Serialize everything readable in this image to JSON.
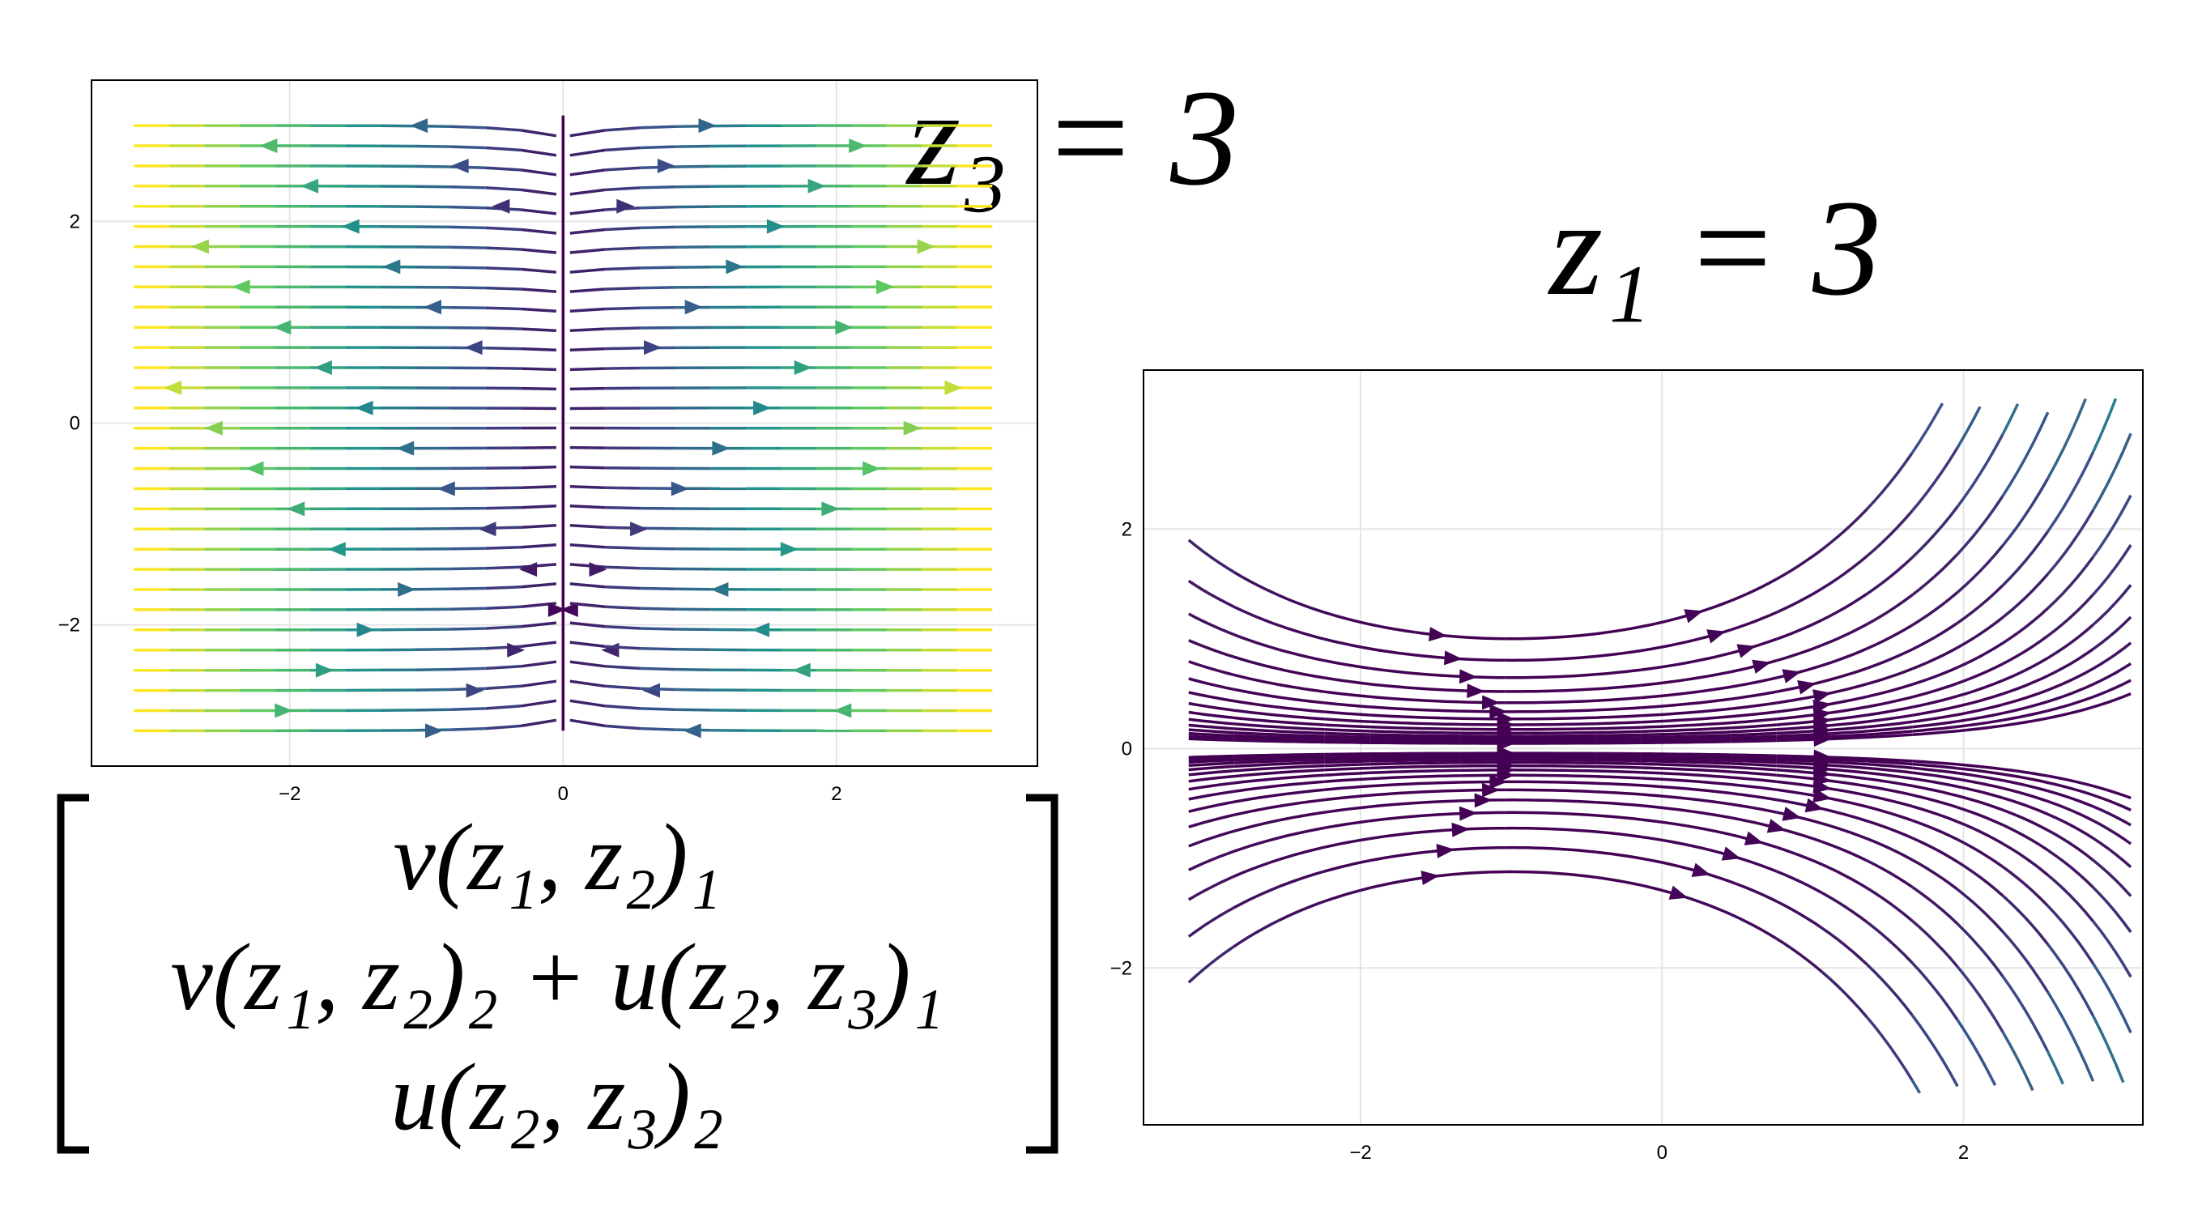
{
  "chart_data": [
    {
      "type": "streamplot",
      "annotation": "z₃ = 3",
      "xlim": [
        -3.45,
        3.47
      ],
      "ylim": [
        -3.4,
        3.4
      ],
      "xticks": [
        {
          "value": -2,
          "label": "−2"
        },
        0,
        2
      ],
      "yticks": [
        {
          "value": -2,
          "label": "−2"
        },
        0,
        2
      ],
      "grid": true
    },
    {
      "type": "streamplot",
      "annotation": "z₁ = 3",
      "xlim": [
        -3.44,
        3.19
      ],
      "ylim": [
        -3.43,
        3.45
      ],
      "xticks": [
        {
          "value": -2,
          "label": "−2"
        },
        0,
        2
      ],
      "yticks": [
        {
          "value": -2,
          "label": "−2"
        },
        0,
        2
      ],
      "grid": true
    }
  ],
  "matrix": {
    "rows": [
      "v(z₁, z₂)₁",
      "v(z₁, z₂)₂ + u(z₂, z₃)₁",
      "u(z₂, z₃)₂"
    ]
  }
}
